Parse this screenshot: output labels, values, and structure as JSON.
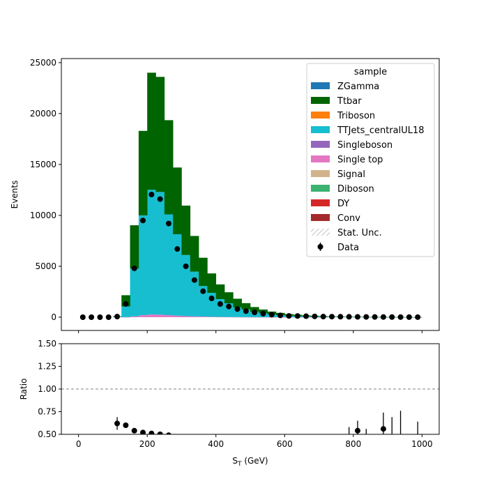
{
  "chart_data": {
    "type": "bar",
    "stacked": true,
    "xlabel_main": "S",
    "xlabel_sub": "T",
    "xlabel_unit": " (GeV)",
    "top": {
      "ylabel": "Events",
      "ylim": [
        -1300,
        25400
      ],
      "yticks": [
        0,
        5000,
        10000,
        15000,
        20000,
        25000
      ],
      "xlim": [
        -50,
        1050
      ],
      "xticks": [
        0,
        200,
        400,
        600,
        800,
        1000
      ],
      "legend": {
        "title": "sample",
        "placement": "top-right",
        "entries": [
          {
            "label": "ZGamma",
            "kind": "patch",
            "color": "#1f77b4"
          },
          {
            "label": "Ttbar",
            "kind": "patch",
            "color": "#006400"
          },
          {
            "label": "Triboson",
            "kind": "patch",
            "color": "#ff7f0e"
          },
          {
            "label": "TTJets_centralUL18",
            "kind": "patch",
            "color": "#17becf"
          },
          {
            "label": "Singleboson",
            "kind": "patch",
            "color": "#9467bd"
          },
          {
            "label": "Single top",
            "kind": "patch",
            "color": "#e377c2"
          },
          {
            "label": "Signal",
            "kind": "patch",
            "color": "#d2b48c"
          },
          {
            "label": "Diboson",
            "kind": "patch",
            "color": "#3cb371"
          },
          {
            "label": "DY",
            "kind": "patch",
            "color": "#d62728"
          },
          {
            "label": "Conv",
            "kind": "patch",
            "color": "#a52a2a"
          },
          {
            "label": "Stat. Unc.",
            "kind": "hatch",
            "color": "#999999"
          },
          {
            "label": "Data",
            "kind": "errorbar",
            "color": "#000000"
          }
        ]
      }
    },
    "bins": {
      "edges": [
        0,
        25,
        50,
        75,
        100,
        125,
        150,
        175,
        200,
        225,
        250,
        275,
        300,
        325,
        350,
        375,
        400,
        425,
        450,
        475,
        500,
        525,
        550,
        575,
        600,
        625,
        650,
        675,
        700,
        725,
        750,
        775,
        800,
        825,
        850,
        875,
        900,
        925,
        950,
        975,
        1000
      ],
      "centers": [
        12.5,
        37.5,
        62.5,
        87.5,
        112.5,
        137.5,
        162.5,
        187.5,
        212.5,
        237.5,
        262.5,
        287.5,
        312.5,
        337.5,
        362.5,
        387.5,
        412.5,
        437.5,
        462.5,
        487.5,
        512.5,
        537.5,
        562.5,
        587.5,
        612.5,
        637.5,
        662.5,
        687.5,
        712.5,
        737.5,
        762.5,
        787.5,
        812.5,
        837.5,
        862.5,
        887.5,
        912.5,
        937.5,
        962.5,
        987.5
      ]
    },
    "series": [
      {
        "name": "Single top",
        "color": "#e377c2",
        "values": [
          0,
          0,
          0,
          0,
          0,
          10,
          80,
          200,
          260,
          250,
          200,
          150,
          110,
          80,
          60,
          40,
          30,
          20,
          15,
          10,
          8,
          5,
          4,
          3,
          2,
          2,
          1,
          1,
          1,
          0,
          0,
          0,
          0,
          0,
          0,
          0,
          0,
          0,
          0,
          0
        ]
      },
      {
        "name": "TTJets_centralUL18",
        "color": "#17becf",
        "values": [
          0,
          0,
          0,
          0,
          60,
          1050,
          4700,
          9800,
          12250,
          12050,
          9900,
          8000,
          6000,
          4400,
          3000,
          2350,
          1750,
          1350,
          950,
          750,
          520,
          390,
          270,
          210,
          150,
          120,
          90,
          70,
          50,
          40,
          30,
          25,
          20,
          15,
          12,
          10,
          8,
          6,
          5,
          4
        ]
      },
      {
        "name": "Ttbar",
        "color": "#006400",
        "values": [
          0,
          0,
          0,
          0,
          40,
          1100,
          4250,
          8300,
          11500,
          11300,
          9250,
          6550,
          4850,
          3500,
          2780,
          1910,
          1440,
          1080,
          850,
          620,
          470,
          360,
          280,
          210,
          150,
          120,
          90,
          70,
          55,
          40,
          30,
          25,
          20,
          15,
          12,
          10,
          8,
          6,
          5,
          4
        ]
      }
    ],
    "data_points": {
      "name": "Data",
      "color": "#000000",
      "values": [
        0,
        0,
        0,
        0,
        60,
        1300,
        4800,
        9500,
        12050,
        11600,
        9200,
        6700,
        5000,
        3650,
        2550,
        1850,
        1300,
        1050,
        800,
        600,
        470,
        350,
        250,
        180,
        130,
        120,
        100,
        80,
        60,
        55,
        50,
        40,
        35,
        30,
        25,
        20,
        15,
        12,
        10,
        8
      ]
    },
    "ratio": {
      "ylabel": "Ratio",
      "ylim": [
        0.5,
        1.5
      ],
      "yticks": [
        0.5,
        0.75,
        1.0,
        1.25,
        1.5
      ],
      "ytick_labels": [
        "0.50",
        "0.75",
        "1.00",
        "1.25",
        "1.50"
      ],
      "reference_line": 1.0,
      "points": [
        {
          "x": 112.5,
          "y": 0.62,
          "err": 0.07
        },
        {
          "x": 137.5,
          "y": 0.6,
          "err": 0.01
        },
        {
          "x": 162.5,
          "y": 0.54,
          "err": 0.005
        },
        {
          "x": 187.5,
          "y": 0.52,
          "err": 0.005
        },
        {
          "x": 212.5,
          "y": 0.51,
          "err": 0.005
        },
        {
          "x": 237.5,
          "y": 0.5,
          "err": 0.005
        },
        {
          "x": 262.5,
          "y": 0.49,
          "err": 0.01
        },
        {
          "x": 787.5,
          "y": 0.45,
          "err": 0.13
        },
        {
          "x": 812.5,
          "y": 0.54,
          "err": 0.11
        },
        {
          "x": 837.5,
          "y": 0.45,
          "err": 0.11
        },
        {
          "x": 887.5,
          "y": 0.56,
          "err": 0.18
        },
        {
          "x": 912.5,
          "y": 0.45,
          "err": 0.24
        },
        {
          "x": 937.5,
          "y": 0.45,
          "err": 0.31
        },
        {
          "x": 987.5,
          "y": 0.45,
          "err": 0.19
        }
      ]
    }
  }
}
